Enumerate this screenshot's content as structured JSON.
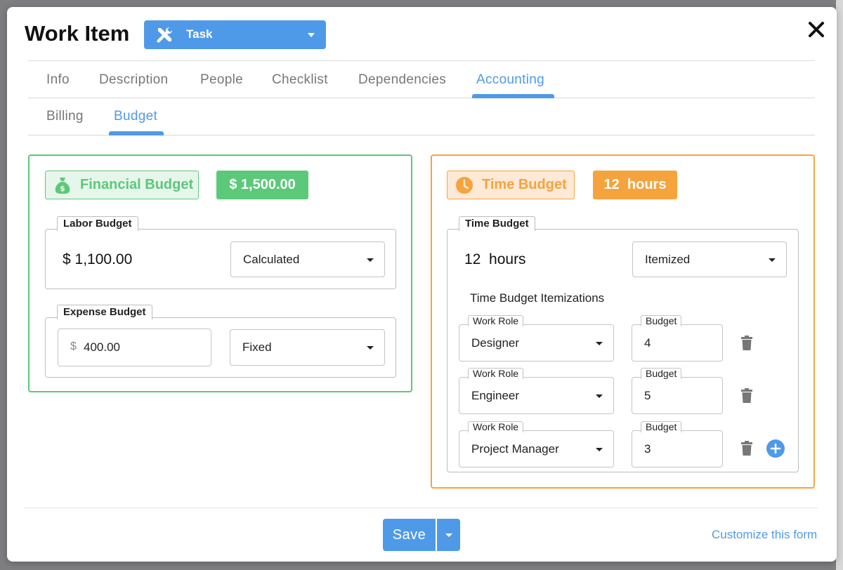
{
  "modal": {
    "title": "Work Item",
    "type_select": {
      "value": "Task"
    }
  },
  "tabs": {
    "main": [
      {
        "label": "Info",
        "active": false
      },
      {
        "label": "Description",
        "active": false
      },
      {
        "label": "People",
        "active": false
      },
      {
        "label": "Checklist",
        "active": false
      },
      {
        "label": "Dependencies",
        "active": false
      },
      {
        "label": "Accounting",
        "active": true
      }
    ],
    "sub": [
      {
        "label": "Billing",
        "active": false
      },
      {
        "label": "Budget",
        "active": true
      }
    ]
  },
  "financial_budget": {
    "label": "Financial Budget",
    "total": "$ 1,500.00",
    "labor": {
      "legend": "Labor Budget",
      "value": "$ 1,100.00",
      "mode": "Calculated"
    },
    "expense": {
      "legend": "Expense Budget",
      "currency_symbol": "$",
      "value": "400.00",
      "mode": "Fixed"
    }
  },
  "time_budget": {
    "label": "Time Budget",
    "total": "12  hours",
    "group": {
      "legend": "Time Budget",
      "value": "12  hours",
      "mode": "Itemized",
      "itemizations_heading": "Time Budget Itemizations",
      "work_role_label": "Work Role",
      "budget_label": "Budget",
      "items": [
        {
          "role": "Designer",
          "budget": "4"
        },
        {
          "role": "Engineer",
          "budget": "5"
        },
        {
          "role": "Project Manager",
          "budget": "3"
        }
      ]
    }
  },
  "footer": {
    "save_label": "Save",
    "customize_link": "Customize this form"
  },
  "colors": {
    "accent_blue": "#4f9ae8",
    "green": "#5cc87a",
    "orange": "#f5a43d"
  },
  "icons": {
    "type": "tools-icon",
    "close": "close-icon",
    "financial": "money-bag-icon",
    "time": "clock-icon",
    "delete": "trash-icon",
    "add": "plus-circle-icon"
  }
}
